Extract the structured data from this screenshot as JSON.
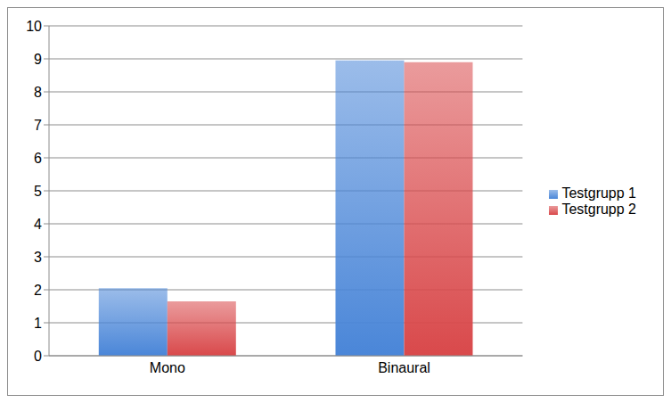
{
  "chart_data": {
    "type": "bar",
    "categories": [
      "Mono",
      "Binaural"
    ],
    "series": [
      {
        "name": "Testgrupp 1",
        "color": "#4a86d8",
        "values": [
          2.05,
          8.95
        ]
      },
      {
        "name": "Testgrupp 2",
        "color": "#d9494b",
        "values": [
          1.65,
          8.9
        ]
      }
    ],
    "ylim": [
      0,
      10
    ],
    "yticks": [
      0,
      1,
      2,
      3,
      4,
      5,
      6,
      7,
      8,
      9,
      10
    ],
    "grid": true,
    "legend": "right"
  }
}
